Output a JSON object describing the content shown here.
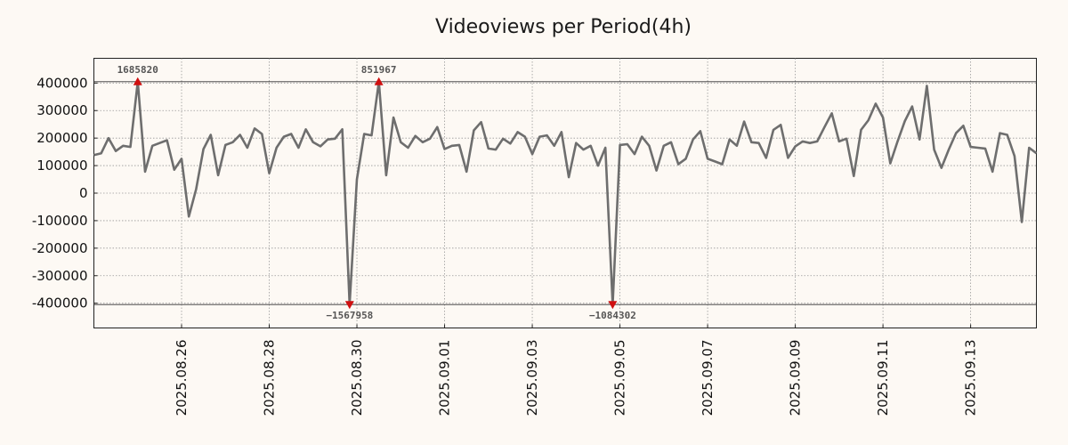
{
  "chart_data": {
    "type": "line",
    "title": "Videoviews per Period(4h)",
    "xlabel": "",
    "ylabel": "",
    "ylim": [
      -490000,
      490000
    ],
    "xlim": [
      "2025-08-24",
      "2025-09-14 12:00"
    ],
    "y_ticks": [
      400000,
      300000,
      200000,
      100000,
      0,
      -100000,
      -200000,
      -300000,
      -400000
    ],
    "x_ticks": [
      "2025.08.26",
      "2025.08.28",
      "2025.08.30",
      "2025.09.01",
      "2025.09.03",
      "2025.09.05",
      "2025.09.07",
      "2025.09.09",
      "2025.09.11",
      "2025.09.13"
    ],
    "grid": true,
    "clip_lines": [
      405000,
      -405000
    ],
    "series": [
      {
        "color": "#6e6e6e",
        "points": [
          [
            "2025-08-24 00:00",
            138000
          ],
          [
            "2025-08-24 04:00",
            145000
          ],
          [
            "2025-08-24 08:00",
            200000
          ],
          [
            "2025-08-24 12:00",
            153000
          ],
          [
            "2025-08-24 16:00",
            172000
          ],
          [
            "2025-08-24 20:00",
            168000
          ],
          [
            "2025-08-25 00:00",
            405000
          ],
          [
            "2025-08-25 04:00",
            78000
          ],
          [
            "2025-08-25 08:00",
            172000
          ],
          [
            "2025-08-25 12:00",
            182000
          ],
          [
            "2025-08-25 16:00",
            192000
          ],
          [
            "2025-08-25 20:00",
            85000
          ],
          [
            "2025-08-26 00:00",
            125000
          ],
          [
            "2025-08-26 04:00",
            -85000
          ],
          [
            "2025-08-26 08:00",
            15000
          ],
          [
            "2025-08-26 12:00",
            160000
          ],
          [
            "2025-08-26 16:00",
            212000
          ],
          [
            "2025-08-26 20:00",
            65000
          ],
          [
            "2025-08-27 00:00",
            175000
          ],
          [
            "2025-08-27 04:00",
            185000
          ],
          [
            "2025-08-27 08:00",
            212000
          ],
          [
            "2025-08-27 12:00",
            165000
          ],
          [
            "2025-08-27 16:00",
            235000
          ],
          [
            "2025-08-27 20:00",
            215000
          ],
          [
            "2025-08-28 00:00",
            72000
          ],
          [
            "2025-08-28 04:00",
            165000
          ],
          [
            "2025-08-28 08:00",
            205000
          ],
          [
            "2025-08-28 12:00",
            215000
          ],
          [
            "2025-08-28 16:00",
            165000
          ],
          [
            "2025-08-28 20:00",
            232000
          ],
          [
            "2025-08-29 00:00",
            185000
          ],
          [
            "2025-08-29 04:00",
            170000
          ],
          [
            "2025-08-29 08:00",
            195000
          ],
          [
            "2025-08-29 12:00",
            198000
          ],
          [
            "2025-08-29 16:00",
            232000
          ],
          [
            "2025-08-29 20:00",
            -405000
          ],
          [
            "2025-08-30 00:00",
            50000
          ],
          [
            "2025-08-30 04:00",
            215000
          ],
          [
            "2025-08-30 08:00",
            210000
          ],
          [
            "2025-08-30 12:00",
            405000
          ],
          [
            "2025-08-30 16:00",
            65000
          ],
          [
            "2025-08-30 20:00",
            275000
          ],
          [
            "2025-08-31 00:00",
            185000
          ],
          [
            "2025-08-31 04:00",
            165000
          ],
          [
            "2025-08-31 08:00",
            208000
          ],
          [
            "2025-08-31 12:00",
            185000
          ],
          [
            "2025-08-31 16:00",
            198000
          ],
          [
            "2025-08-31 20:00",
            240000
          ],
          [
            "2025-09-01 00:00",
            160000
          ],
          [
            "2025-09-01 04:00",
            172000
          ],
          [
            "2025-09-01 08:00",
            175000
          ],
          [
            "2025-09-01 12:00",
            78000
          ],
          [
            "2025-09-01 16:00",
            228000
          ],
          [
            "2025-09-01 20:00",
            258000
          ],
          [
            "2025-09-02 00:00",
            162000
          ],
          [
            "2025-09-02 04:00",
            158000
          ],
          [
            "2025-09-02 08:00",
            198000
          ],
          [
            "2025-09-02 12:00",
            180000
          ],
          [
            "2025-09-02 16:00",
            222000
          ],
          [
            "2025-09-02 20:00",
            205000
          ],
          [
            "2025-09-03 00:00",
            142000
          ],
          [
            "2025-09-03 04:00",
            205000
          ],
          [
            "2025-09-03 08:00",
            210000
          ],
          [
            "2025-09-03 12:00",
            172000
          ],
          [
            "2025-09-03 16:00",
            222000
          ],
          [
            "2025-09-03 20:00",
            58000
          ],
          [
            "2025-09-04 00:00",
            182000
          ],
          [
            "2025-09-04 04:00",
            158000
          ],
          [
            "2025-09-04 08:00",
            172000
          ],
          [
            "2025-09-04 12:00",
            100000
          ],
          [
            "2025-09-04 16:00",
            165000
          ],
          [
            "2025-09-04 20:00",
            -405000
          ],
          [
            "2025-09-05 00:00",
            175000
          ],
          [
            "2025-09-05 04:00",
            178000
          ],
          [
            "2025-09-05 08:00",
            142000
          ],
          [
            "2025-09-05 12:00",
            205000
          ],
          [
            "2025-09-05 16:00",
            172000
          ],
          [
            "2025-09-05 20:00",
            82000
          ],
          [
            "2025-09-06 00:00",
            172000
          ],
          [
            "2025-09-06 04:00",
            185000
          ],
          [
            "2025-09-06 08:00",
            105000
          ],
          [
            "2025-09-06 12:00",
            125000
          ],
          [
            "2025-09-06 16:00",
            195000
          ],
          [
            "2025-09-06 20:00",
            225000
          ],
          [
            "2025-09-07 00:00",
            125000
          ],
          [
            "2025-09-07 04:00",
            115000
          ],
          [
            "2025-09-07 08:00",
            105000
          ],
          [
            "2025-09-07 12:00",
            195000
          ],
          [
            "2025-09-07 16:00",
            172000
          ],
          [
            "2025-09-07 20:00",
            260000
          ],
          [
            "2025-09-08 00:00",
            185000
          ],
          [
            "2025-09-08 04:00",
            182000
          ],
          [
            "2025-09-08 08:00",
            128000
          ],
          [
            "2025-09-08 12:00",
            230000
          ],
          [
            "2025-09-08 16:00",
            248000
          ],
          [
            "2025-09-08 20:00",
            128000
          ],
          [
            "2025-09-09 00:00",
            170000
          ],
          [
            "2025-09-09 04:00",
            188000
          ],
          [
            "2025-09-09 08:00",
            182000
          ],
          [
            "2025-09-09 12:00",
            188000
          ],
          [
            "2025-09-09 16:00",
            240000
          ],
          [
            "2025-09-09 20:00",
            290000
          ],
          [
            "2025-09-10 00:00",
            188000
          ],
          [
            "2025-09-10 04:00",
            198000
          ],
          [
            "2025-09-10 08:00",
            62000
          ],
          [
            "2025-09-10 12:00",
            230000
          ],
          [
            "2025-09-10 16:00",
            265000
          ],
          [
            "2025-09-10 20:00",
            325000
          ],
          [
            "2025-09-11 00:00",
            275000
          ],
          [
            "2025-09-11 04:00",
            108000
          ],
          [
            "2025-09-11 08:00",
            188000
          ],
          [
            "2025-09-11 12:00",
            262000
          ],
          [
            "2025-09-11 16:00",
            315000
          ],
          [
            "2025-09-11 20:00",
            195000
          ],
          [
            "2025-09-12 00:00",
            390000
          ],
          [
            "2025-09-12 04:00",
            158000
          ],
          [
            "2025-09-12 08:00",
            92000
          ],
          [
            "2025-09-12 12:00",
            158000
          ],
          [
            "2025-09-12 16:00",
            218000
          ],
          [
            "2025-09-12 20:00",
            245000
          ],
          [
            "2025-09-13 00:00",
            168000
          ],
          [
            "2025-09-13 04:00",
            165000
          ],
          [
            "2025-09-13 08:00",
            162000
          ],
          [
            "2025-09-13 12:00",
            78000
          ],
          [
            "2025-09-13 16:00",
            218000
          ],
          [
            "2025-09-13 20:00",
            212000
          ],
          [
            "2025-09-14 00:00",
            135000
          ],
          [
            "2025-09-14 04:00",
            -105000
          ],
          [
            "2025-09-14 08:00",
            165000
          ],
          [
            "2025-09-14 12:00",
            145000
          ]
        ]
      }
    ],
    "annotations": [
      {
        "x": "2025-08-25 00:00",
        "label": "1685820",
        "marker": "up"
      },
      {
        "x": "2025-08-30 12:00",
        "label": "851967",
        "marker": "up"
      },
      {
        "x": "2025-08-29 20:00",
        "label": "−1567958",
        "marker": "down"
      },
      {
        "x": "2025-09-04 20:00",
        "label": "−1084302",
        "marker": "down"
      }
    ],
    "marker_color": "#d01010"
  }
}
